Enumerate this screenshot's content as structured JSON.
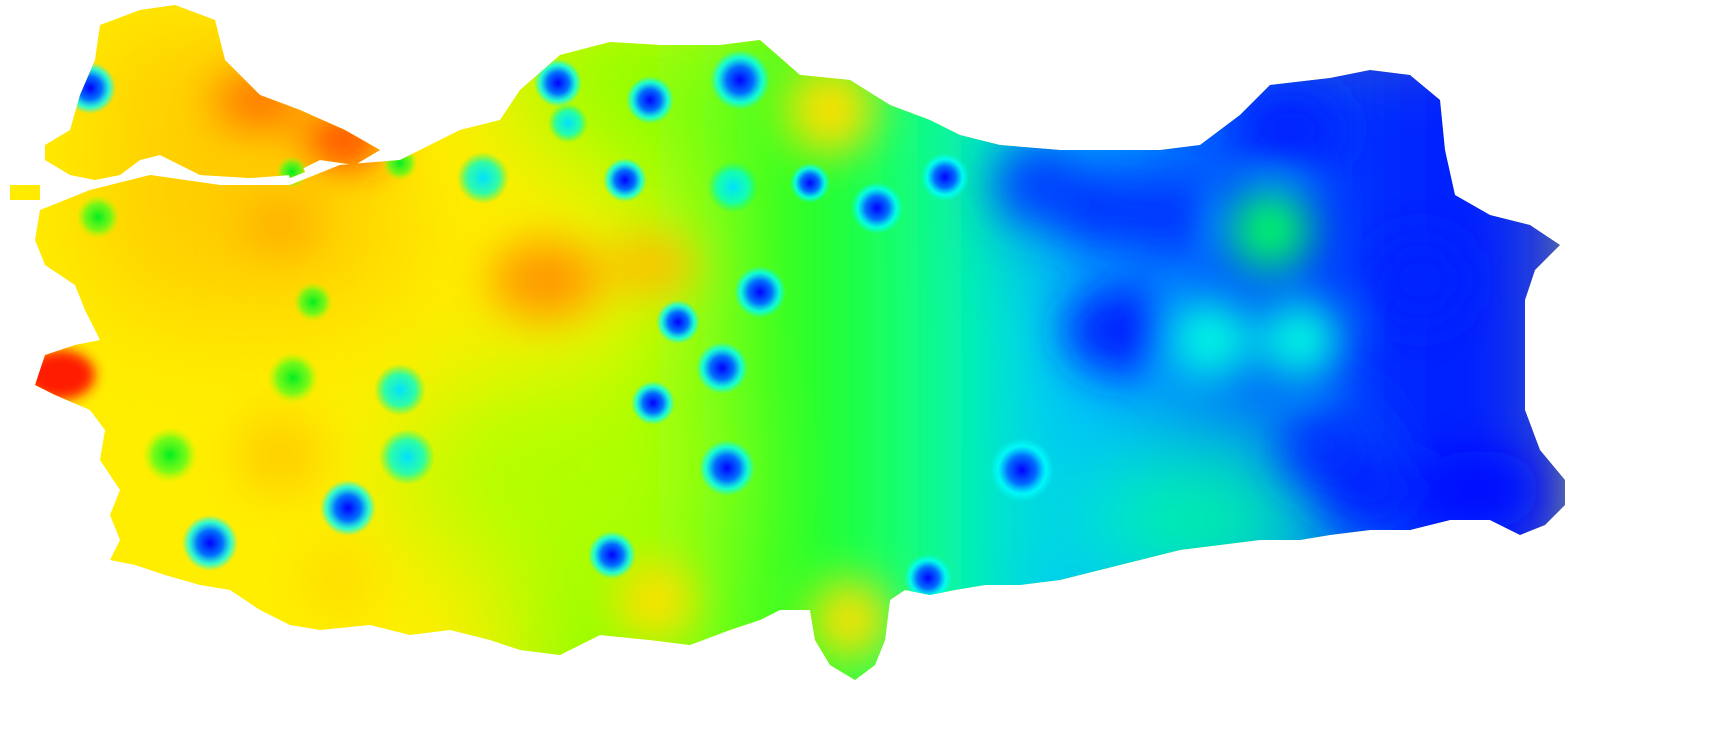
{
  "map": {
    "subject": "Turkey",
    "style": "interpolated heat map",
    "colormap": [
      "#ff0000",
      "#ff8c00",
      "#ffff00",
      "#7fff00",
      "#00ff00",
      "#00ffff",
      "#0090ff",
      "#0000ff"
    ],
    "background": "#ffffff"
  }
}
